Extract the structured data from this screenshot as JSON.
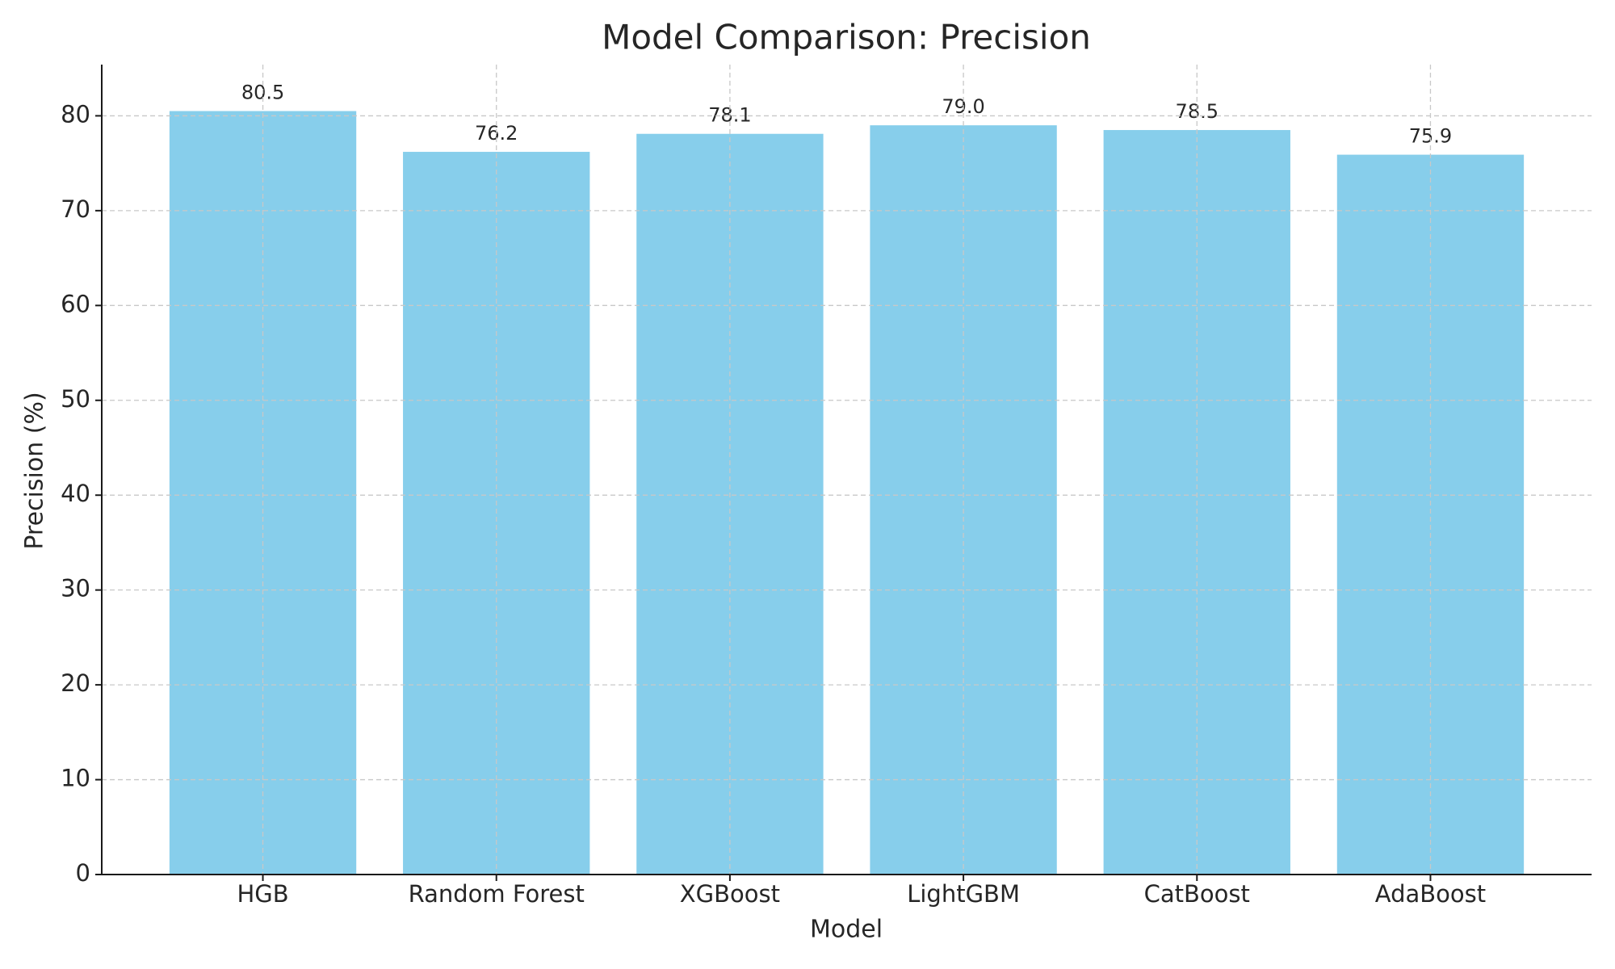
{
  "chart_data": {
    "type": "bar",
    "title": "Model Comparison: Precision",
    "x_label": "Model",
    "y_label": "Precision (%)",
    "categories": [
      "HGB",
      "Random Forest",
      "XGBoost",
      "LightGBM",
      "CatBoost",
      "AdaBoost"
    ],
    "values": [
      80.5,
      76.2,
      78.1,
      79.0,
      78.5,
      75.9
    ],
    "value_labels": [
      "80.5",
      "76.2",
      "78.1",
      "79.0",
      "78.5",
      "75.9"
    ],
    "color": "#87ceeb",
    "ylim": [
      0,
      85.4
    ],
    "yticks": [
      0,
      10,
      20,
      30,
      40,
      50,
      60,
      70,
      80
    ],
    "grid": true
  }
}
